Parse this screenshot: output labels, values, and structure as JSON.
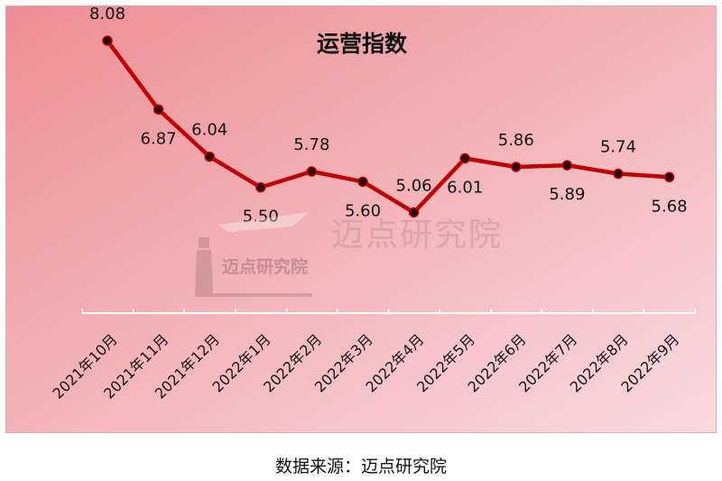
{
  "chart_data": {
    "type": "line",
    "title": "运营指数",
    "categories": [
      "2021年10月",
      "2021年11月",
      "2021年12月",
      "2022年1月",
      "2022年2月",
      "2022年3月",
      "2022年4月",
      "2022年5月",
      "2022年6月",
      "2022年7月",
      "2022年8月",
      "2022年9月"
    ],
    "values": [
      8.08,
      6.87,
      6.04,
      5.5,
      5.78,
      5.6,
      5.06,
      6.01,
      5.86,
      5.89,
      5.74,
      5.68
    ],
    "value_labels": [
      "8.08",
      "6.87",
      "6.04",
      "5.50",
      "5.78",
      "5.60",
      "5.06",
      "6.01",
      "5.86",
      "5.89",
      "5.74",
      "5.68"
    ],
    "xlabel": "",
    "ylabel": "",
    "grid": false,
    "legend": "none",
    "line_color": "#c00000",
    "background_gradient": [
      "#ec8e94",
      "#f9dade"
    ]
  },
  "watermark": {
    "text": "迈点研究院"
  },
  "source": "数据来源：迈点研究院"
}
